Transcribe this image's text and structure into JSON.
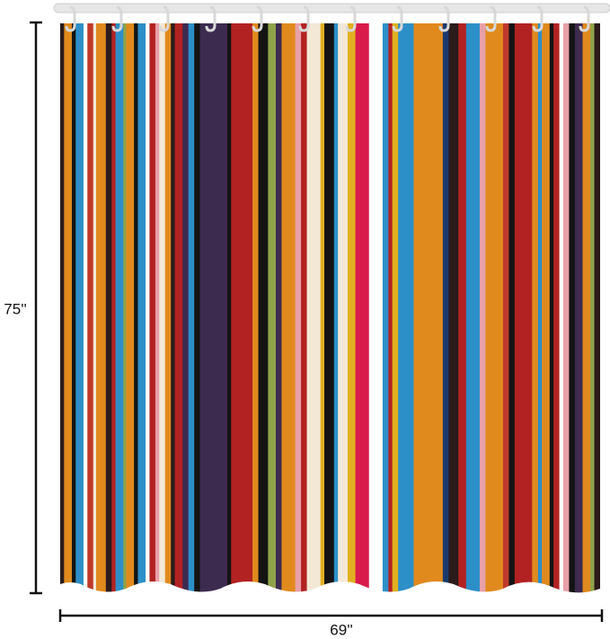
{
  "dimensions": {
    "height": "75''",
    "width": "69''"
  }
}
